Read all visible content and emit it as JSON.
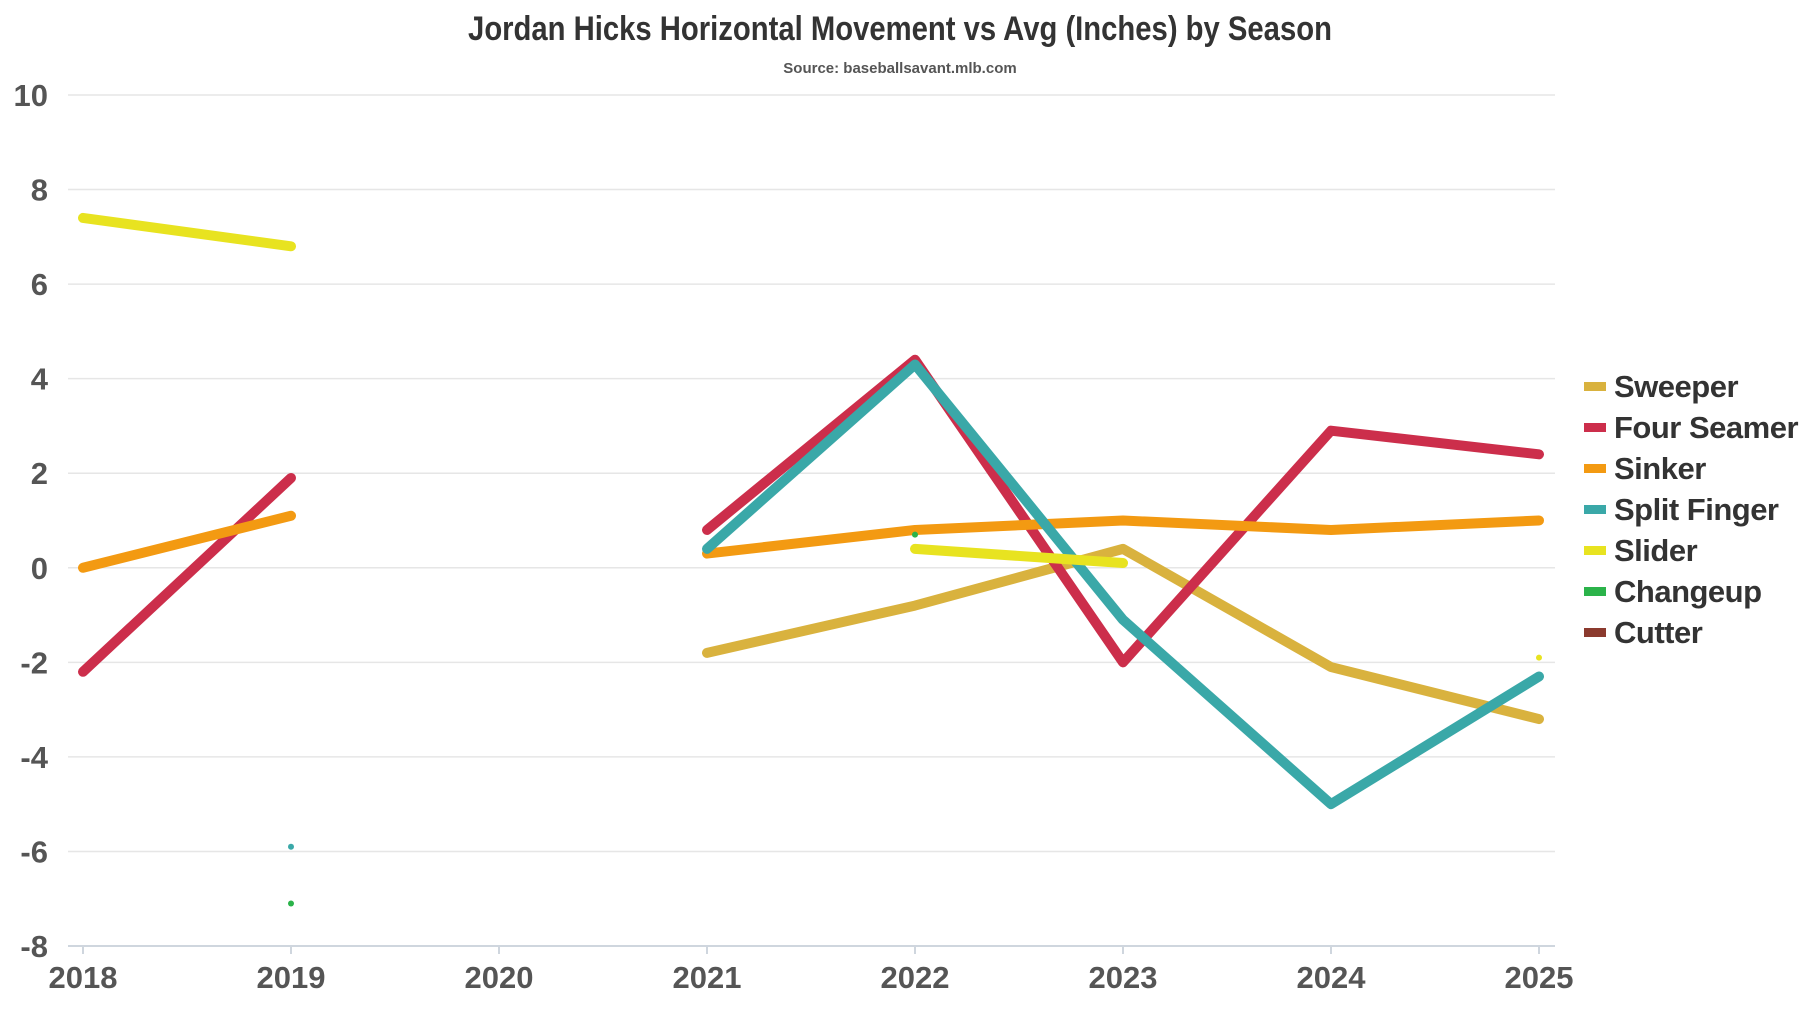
{
  "chart_data": {
    "type": "line",
    "title": "Jordan Hicks Horizontal Movement vs Avg (Inches) by Season",
    "subtitle": "Source: baseballsavant.mlb.com",
    "xlabel": "",
    "ylabel": "",
    "x": [
      "2018",
      "2019",
      "2020",
      "2021",
      "2022",
      "2023",
      "2024",
      "2025"
    ],
    "ylim": [
      -8,
      10
    ],
    "yticks": [
      10,
      8,
      6,
      4,
      2,
      0,
      -2,
      -4,
      -6,
      -8
    ],
    "grid": true,
    "legend_position": "right",
    "series": [
      {
        "name": "Sweeper",
        "color": "#d9b23e",
        "values": [
          null,
          null,
          null,
          -1.8,
          -0.8,
          0.4,
          -2.1,
          -3.2
        ]
      },
      {
        "name": "Four Seamer",
        "color": "#cc2e4b",
        "values": [
          -2.2,
          1.9,
          null,
          0.8,
          4.4,
          -2.0,
          2.9,
          2.4
        ]
      },
      {
        "name": "Sinker",
        "color": "#f39a12",
        "values": [
          0.0,
          1.1,
          null,
          0.3,
          0.8,
          1.0,
          0.8,
          1.0
        ]
      },
      {
        "name": "Split Finger",
        "color": "#3aa8a8",
        "values": [
          null,
          -5.9,
          null,
          0.4,
          4.3,
          -1.1,
          -5.0,
          -2.3
        ]
      },
      {
        "name": "Slider",
        "color": "#e8e320",
        "values": [
          7.4,
          6.8,
          null,
          null,
          0.4,
          0.1,
          null,
          -1.9
        ]
      },
      {
        "name": "Changeup",
        "color": "#2bb34a",
        "values": [
          null,
          -7.1,
          null,
          null,
          0.7,
          null,
          null,
          null
        ]
      },
      {
        "name": "Cutter",
        "color": "#8b3a2e",
        "values": [
          null,
          null,
          null,
          null,
          null,
          null,
          null,
          null
        ]
      }
    ]
  }
}
